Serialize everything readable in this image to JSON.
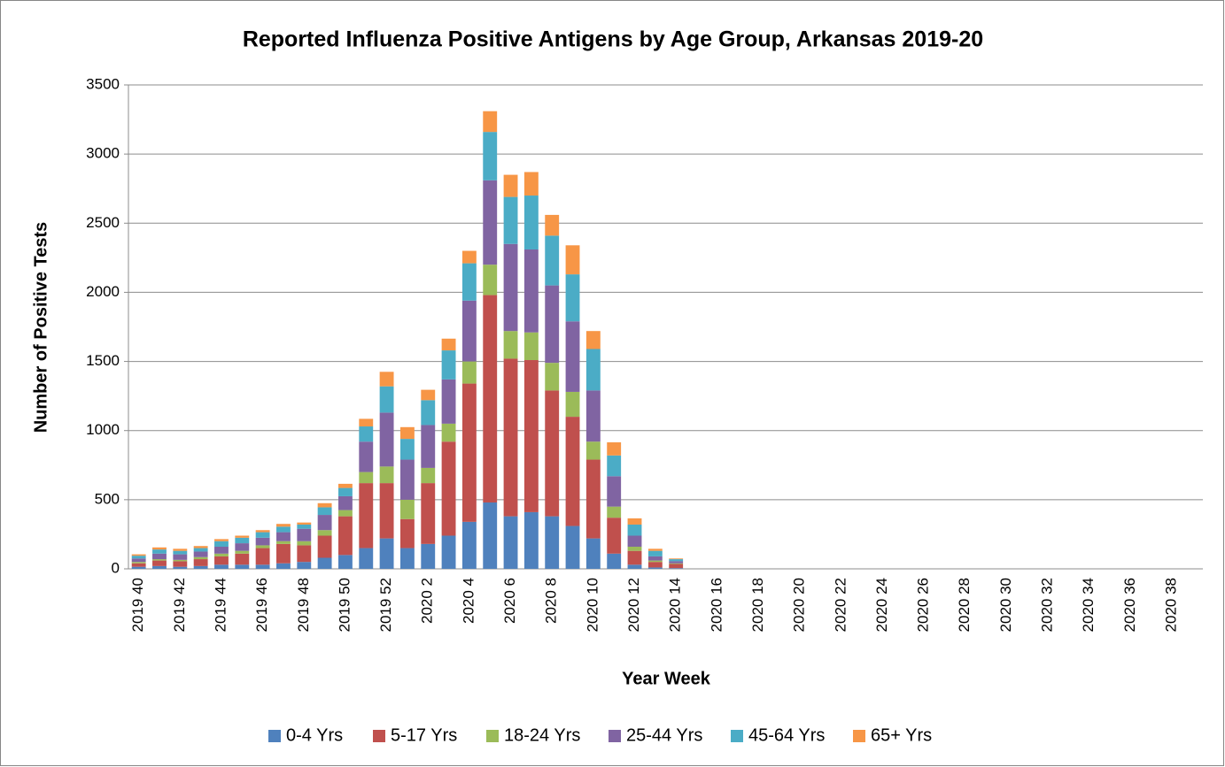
{
  "chart_data": {
    "type": "stacked-bar",
    "title": "Reported Influenza Positive Antigens by Age Group, Arkansas 2019-20",
    "x_label": "Year Week",
    "y_label": "Number of Positive Tests",
    "categories": [
      "2019 40",
      null,
      "2019 42",
      null,
      "2019 44",
      null,
      "2019 46",
      null,
      "2019 48",
      null,
      "2019 50",
      null,
      "2019 52",
      null,
      "2020 2",
      null,
      "2020 4",
      null,
      "2020 6",
      null,
      "2020 8",
      null,
      "2020 10",
      null,
      "2020 12",
      null,
      "2020 14",
      null,
      "2020 16",
      null,
      "2020 18",
      null,
      "2020 20",
      null,
      "2020 22",
      null,
      "2020 24",
      null,
      "2020 26",
      null,
      "2020 28",
      null,
      "2020 30",
      null,
      "2020 32",
      null,
      "2020 34",
      null,
      "2020 36",
      null,
      "2020 38",
      null
    ],
    "series": [
      {
        "name": "0-4 Yrs",
        "color": "#4f81bd",
        "values": [
          15,
          20,
          15,
          20,
          30,
          30,
          30,
          40,
          50,
          80,
          100,
          150,
          220,
          150,
          180,
          240,
          340,
          480,
          380,
          410,
          380,
          310,
          220,
          110,
          30,
          10,
          5,
          0,
          0,
          0,
          0,
          0,
          0,
          0,
          0,
          0,
          0,
          0,
          0,
          0,
          0,
          0,
          0,
          0,
          0,
          0,
          0,
          0,
          0,
          0,
          0,
          0
        ]
      },
      {
        "name": "5-17 Yrs",
        "color": "#c0504d",
        "values": [
          25,
          40,
          40,
          50,
          60,
          80,
          120,
          140,
          120,
          160,
          280,
          470,
          400,
          210,
          440,
          680,
          1000,
          1500,
          1140,
          1100,
          910,
          790,
          570,
          260,
          100,
          40,
          30,
          0,
          0,
          0,
          0,
          0,
          0,
          0,
          0,
          0,
          0,
          0,
          0,
          0,
          0,
          0,
          0,
          0,
          0,
          0,
          0,
          0,
          0,
          0,
          0,
          0
        ]
      },
      {
        "name": "18-24 Yrs",
        "color": "#9bbb59",
        "values": [
          10,
          10,
          10,
          15,
          20,
          20,
          20,
          20,
          30,
          40,
          45,
          80,
          120,
          140,
          110,
          130,
          160,
          220,
          200,
          200,
          200,
          180,
          130,
          80,
          30,
          10,
          5,
          0,
          0,
          0,
          0,
          0,
          0,
          0,
          0,
          0,
          0,
          0,
          0,
          0,
          0,
          0,
          0,
          0,
          0,
          0,
          0,
          0,
          0,
          0,
          0,
          0
        ]
      },
      {
        "name": "25-44 Yrs",
        "color": "#8064a2",
        "values": [
          25,
          40,
          40,
          40,
          50,
          55,
          55,
          65,
          90,
          110,
          100,
          220,
          390,
          290,
          310,
          320,
          440,
          610,
          630,
          600,
          560,
          510,
          370,
          220,
          80,
          30,
          15,
          0,
          0,
          0,
          0,
          0,
          0,
          0,
          0,
          0,
          0,
          0,
          0,
          0,
          0,
          0,
          0,
          0,
          0,
          0,
          0,
          0,
          0,
          0,
          0,
          0
        ]
      },
      {
        "name": "45-64 Yrs",
        "color": "#4bacc6",
        "values": [
          20,
          30,
          25,
          25,
          40,
          40,
          40,
          40,
          30,
          55,
          60,
          110,
          190,
          150,
          180,
          210,
          270,
          350,
          340,
          390,
          360,
          340,
          300,
          150,
          80,
          40,
          15,
          0,
          0,
          0,
          0,
          0,
          0,
          0,
          0,
          0,
          0,
          0,
          0,
          0,
          0,
          0,
          0,
          0,
          0,
          0,
          0,
          0,
          0,
          0,
          0,
          0
        ]
      },
      {
        "name": "65+ Yrs",
        "color": "#f79646",
        "values": [
          10,
          15,
          15,
          15,
          15,
          15,
          15,
          20,
          15,
          30,
          30,
          55,
          105,
          85,
          75,
          85,
          90,
          150,
          160,
          170,
          150,
          210,
          130,
          95,
          45,
          15,
          5,
          0,
          0,
          0,
          0,
          0,
          0,
          0,
          0,
          0,
          0,
          0,
          0,
          0,
          0,
          0,
          0,
          0,
          0,
          0,
          0,
          0,
          0,
          0,
          0,
          0
        ]
      }
    ],
    "ylim": [
      0,
      3500
    ],
    "yticks": [
      0,
      500,
      1000,
      1500,
      2000,
      2500,
      3000,
      3500
    ],
    "grid": true,
    "legend": "bottom"
  }
}
